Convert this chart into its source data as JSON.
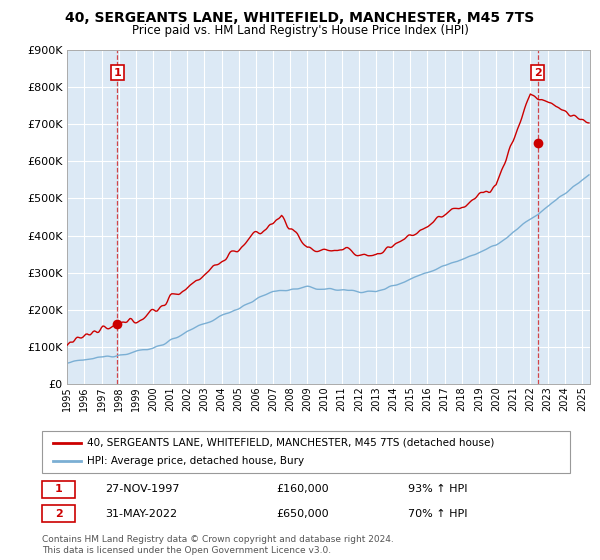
{
  "title": "40, SERGEANTS LANE, WHITEFIELD, MANCHESTER, M45 7TS",
  "subtitle": "Price paid vs. HM Land Registry's House Price Index (HPI)",
  "ylim": [
    0,
    900000
  ],
  "yticks": [
    0,
    100000,
    200000,
    300000,
    400000,
    500000,
    600000,
    700000,
    800000,
    900000
  ],
  "ytick_labels": [
    "£0",
    "£100K",
    "£200K",
    "£300K",
    "£400K",
    "£500K",
    "£600K",
    "£700K",
    "£800K",
    "£900K"
  ],
  "xlim_start": 1995.0,
  "xlim_end": 2025.5,
  "background_color": "#ffffff",
  "plot_bg_color": "#dce9f5",
  "grid_color": "#ffffff",
  "sale1_x": 1997.92,
  "sale1_y": 160000,
  "sale2_x": 2022.42,
  "sale2_y": 650000,
  "red_line_color": "#cc0000",
  "blue_line_color": "#7bafd4",
  "marker_color": "#cc0000",
  "legend_label_red": "40, SERGEANTS LANE, WHITEFIELD, MANCHESTER, M45 7TS (detached house)",
  "legend_label_blue": "HPI: Average price, detached house, Bury",
  "note1_num": "1",
  "note1_date": "27-NOV-1997",
  "note1_price": "£160,000",
  "note1_hpi": "93% ↑ HPI",
  "note2_num": "2",
  "note2_date": "31-MAY-2022",
  "note2_price": "£650,000",
  "note2_hpi": "70% ↑ HPI",
  "footer": "Contains HM Land Registry data © Crown copyright and database right 2024.\nThis data is licensed under the Open Government Licence v3.0."
}
